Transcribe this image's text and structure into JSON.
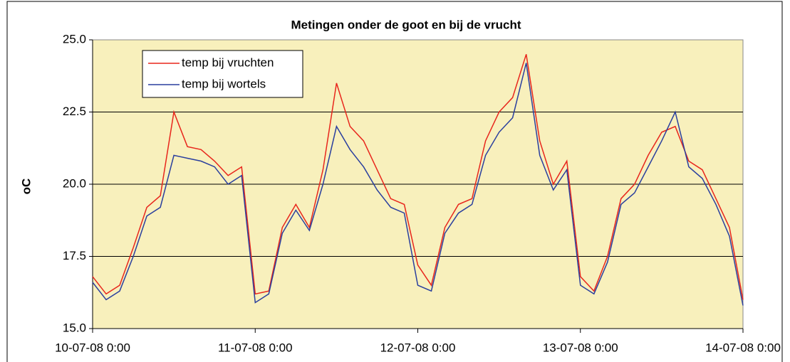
{
  "chart_data": {
    "type": "line",
    "title": "Metingen onder de goot en bij de vrucht",
    "y_label": "oC",
    "x": [
      "10-07-08 0:00",
      "10-07-08 2:00",
      "10-07-08 4:00",
      "10-07-08 6:00",
      "10-07-08 8:00",
      "10-07-08 10:00",
      "10-07-08 12:00",
      "10-07-08 14:00",
      "10-07-08 16:00",
      "10-07-08 18:00",
      "10-07-08 20:00",
      "10-07-08 22:00",
      "11-07-08 0:00",
      "11-07-08 2:00",
      "11-07-08 4:00",
      "11-07-08 6:00",
      "11-07-08 8:00",
      "11-07-08 10:00",
      "11-07-08 12:00",
      "11-07-08 14:00",
      "11-07-08 16:00",
      "11-07-08 18:00",
      "11-07-08 20:00",
      "11-07-08 22:00",
      "12-07-08 0:00",
      "12-07-08 2:00",
      "12-07-08 4:00",
      "12-07-08 6:00",
      "12-07-08 8:00",
      "12-07-08 10:00",
      "12-07-08 12:00",
      "12-07-08 14:00",
      "12-07-08 16:00",
      "12-07-08 18:00",
      "12-07-08 20:00",
      "12-07-08 22:00",
      "13-07-08 0:00",
      "13-07-08 2:00",
      "13-07-08 4:00",
      "13-07-08 6:00",
      "13-07-08 8:00",
      "13-07-08 10:00",
      "13-07-08 12:00",
      "13-07-08 14:00",
      "13-07-08 16:00",
      "13-07-08 18:00",
      "13-07-08 20:00",
      "13-07-08 22:00",
      "14-07-08 0:00"
    ],
    "series": [
      {
        "name": "temp bij vruchten",
        "color": "#e8261c",
        "values": [
          16.8,
          16.2,
          16.5,
          17.8,
          19.2,
          19.6,
          22.5,
          21.3,
          21.2,
          20.8,
          20.3,
          20.6,
          16.2,
          16.3,
          18.5,
          19.3,
          18.5,
          20.5,
          23.5,
          22.0,
          21.5,
          20.5,
          19.5,
          19.3,
          17.2,
          16.5,
          18.5,
          19.3,
          19.5,
          21.5,
          22.5,
          23.0,
          24.5,
          21.5,
          20.0,
          20.8,
          16.8,
          16.3,
          17.5,
          19.5,
          20.0,
          21.0,
          21.8,
          22.0,
          20.8,
          20.5,
          19.5,
          18.5,
          16.0
        ]
      },
      {
        "name": "temp bij wortels",
        "color": "#2a3f9e",
        "values": [
          16.6,
          16.0,
          16.3,
          17.5,
          18.9,
          19.2,
          21.0,
          20.9,
          20.8,
          20.6,
          20.0,
          20.3,
          15.9,
          16.2,
          18.3,
          19.1,
          18.4,
          20.0,
          22.0,
          21.2,
          20.6,
          19.8,
          19.2,
          19.0,
          16.5,
          16.3,
          18.3,
          19.0,
          19.3,
          21.0,
          21.8,
          22.3,
          24.2,
          21.0,
          19.8,
          20.5,
          16.5,
          16.2,
          17.3,
          19.3,
          19.7,
          20.6,
          21.5,
          22.5,
          20.6,
          20.2,
          19.3,
          18.2,
          15.8
        ]
      }
    ],
    "xlim": [
      "10-07-08 0:00",
      "14-07-08 0:00"
    ],
    "xticks": [
      "10-07-08 0:00",
      "11-07-08 0:00",
      "12-07-08 0:00",
      "13-07-08 0:00",
      "14-07-08 0:00"
    ],
    "ylim": [
      15,
      25
    ],
    "yticks": [
      {
        "value": 15,
        "label": "15.0"
      },
      {
        "value": 17.5,
        "label": "17.5"
      },
      {
        "value": 20,
        "label": "20.0"
      },
      {
        "value": 22.5,
        "label": "22.5"
      },
      {
        "value": 25,
        "label": "25.0"
      }
    ],
    "grid": true,
    "legend": "upper left"
  }
}
